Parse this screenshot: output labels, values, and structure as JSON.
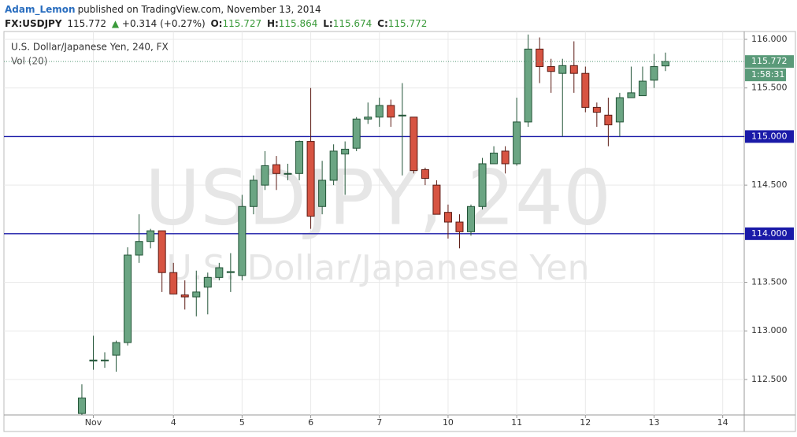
{
  "header": {
    "author": "Adam_Lemon",
    "published": "published on TradingView.com, November 13, 2014",
    "symbol": "FX:USDJPY",
    "arrow": "▲",
    "change": "+0.314 (+0.27%)",
    "o_label": "O:",
    "h_label": "H:",
    "l_label": "L:",
    "c_label": "C:"
  },
  "chart_data": {
    "type": "candlestick",
    "title": "U.S. Dollar/Japanese Yen, 240, FX",
    "subtitle": "Vol (20)",
    "watermark": "USDJPY, 240",
    "watermark_sub": "U.S. Dollar/Japanese Yen",
    "countdown": "1:58:31",
    "up_color": "#6ba583",
    "down_color": "#d75442",
    "open": [
      112.15,
      112.69,
      112.7,
      112.75,
      112.88,
      113.78,
      113.92,
      114.03,
      113.6,
      113.37,
      113.35,
      113.45,
      113.55,
      113.6,
      113.57,
      114.28,
      114.5,
      114.71,
      114.62,
      114.62,
      114.95,
      114.28,
      114.55,
      114.82,
      114.88,
      115.18,
      115.2,
      115.32,
      115.22,
      115.2,
      114.66,
      114.5,
      114.22,
      114.12,
      114.02,
      114.28,
      114.72,
      114.85,
      114.72,
      115.15,
      115.9,
      115.72,
      115.65,
      115.73,
      115.65,
      115.3,
      115.22,
      115.15,
      115.4,
      115.42,
      115.58,
      115.727
    ],
    "high": [
      112.45,
      112.95,
      112.78,
      112.9,
      113.86,
      114.2,
      114.05,
      114.03,
      113.7,
      113.52,
      113.62,
      113.6,
      113.7,
      113.8,
      114.4,
      114.6,
      114.85,
      114.8,
      114.72,
      114.96,
      115.5,
      114.75,
      114.92,
      114.95,
      115.2,
      115.35,
      115.4,
      115.38,
      115.55,
      115.2,
      114.68,
      114.55,
      114.3,
      114.2,
      114.3,
      114.78,
      114.9,
      114.9,
      115.4,
      116.05,
      116.02,
      115.8,
      115.8,
      115.98,
      115.72,
      115.35,
      115.4,
      115.45,
      115.72,
      115.72,
      115.85,
      115.864
    ],
    "low": [
      112.1,
      112.6,
      112.62,
      112.58,
      112.85,
      113.7,
      113.85,
      113.4,
      113.38,
      113.22,
      113.15,
      113.17,
      113.52,
      113.4,
      113.52,
      114.2,
      114.45,
      114.45,
      114.55,
      114.55,
      114.05,
      114.2,
      114.5,
      114.4,
      114.85,
      115.13,
      115.1,
      115.1,
      114.6,
      114.62,
      114.5,
      114.2,
      113.95,
      113.85,
      113.98,
      114.25,
      114.72,
      114.62,
      114.7,
      115.1,
      115.55,
      115.45,
      115.0,
      115.45,
      115.25,
      115.1,
      114.9,
      115.0,
      115.4,
      115.42,
      115.5,
      115.674
    ],
    "close": [
      112.31,
      112.7,
      112.7,
      112.88,
      113.78,
      113.92,
      114.03,
      113.6,
      113.38,
      113.35,
      113.4,
      113.55,
      113.65,
      113.61,
      114.28,
      114.55,
      114.7,
      114.62,
      114.62,
      114.95,
      114.18,
      114.55,
      114.85,
      114.87,
      115.18,
      115.2,
      115.32,
      115.2,
      115.22,
      114.65,
      114.57,
      114.2,
      114.12,
      114.02,
      114.28,
      114.72,
      114.83,
      114.72,
      115.15,
      115.9,
      115.72,
      115.67,
      115.73,
      115.65,
      115.3,
      115.25,
      115.12,
      115.4,
      115.45,
      115.57,
      115.72,
      115.772
    ],
    "xlim": [
      -6.81,
      57.88
    ],
    "xticks": [
      {
        "value": 1,
        "label": "Nov"
      },
      {
        "value": 8,
        "label": "4"
      },
      {
        "value": 14,
        "label": "5"
      },
      {
        "value": 20,
        "label": "6"
      },
      {
        "value": 26,
        "label": "7"
      },
      {
        "value": 32,
        "label": "10"
      },
      {
        "value": 38,
        "label": "11"
      },
      {
        "value": 44,
        "label": "12"
      },
      {
        "value": 50,
        "label": "13"
      },
      {
        "value": 56,
        "label": "14"
      }
    ],
    "ylim": [
      112.135,
      116.081
    ],
    "yticks": [
      {
        "value": 112.5,
        "label": "112.500"
      },
      {
        "value": 113,
        "label": "113.000"
      },
      {
        "value": 113.5,
        "label": "113.500"
      },
      {
        "value": 114,
        "label": "114.000"
      },
      {
        "value": 114.5,
        "label": "114.500"
      },
      {
        "value": 115,
        "label": "115.000"
      },
      {
        "value": 115.5,
        "label": "115.500"
      },
      {
        "value": 116,
        "label": "116.000"
      }
    ],
    "hlines": [
      {
        "value": 115,
        "label": "115.000"
      },
      {
        "value": 114,
        "label": "114.000"
      }
    ],
    "hline_color": "#1a1aa8",
    "grid": true
  }
}
